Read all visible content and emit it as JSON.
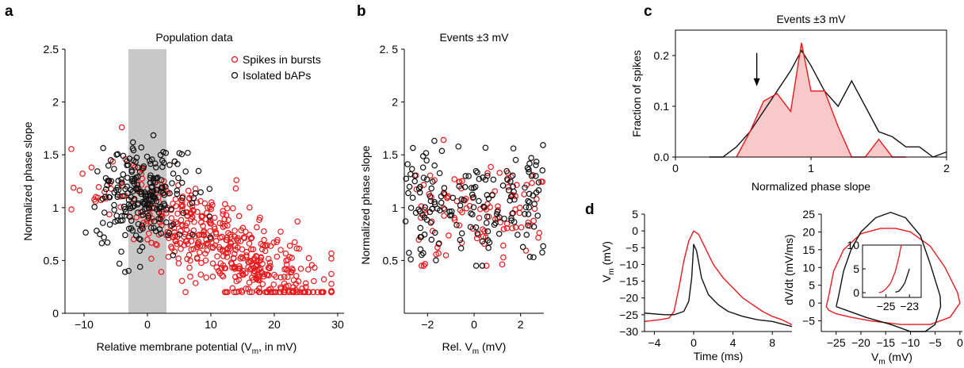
{
  "colors": {
    "bursts": "#e8191c",
    "isolated": "#111111",
    "shade": "#c8c8c8",
    "fill": "#f9c9c9"
  },
  "panel_labels": {
    "a": "a",
    "b": "b",
    "c": "c",
    "d": "d"
  },
  "chart_data": [
    {
      "id": "a",
      "type": "scatter",
      "title": "Population data",
      "xlabel_main": "Relative membrane potential (V",
      "xlabel_sub": "m",
      "xlabel_tail": ", in mV)",
      "ylabel": "Normalized phase slope",
      "xlim": [
        -13,
        31
      ],
      "ylim": [
        0,
        2.5
      ],
      "xticks": [
        -10,
        0,
        10,
        20,
        30
      ],
      "xticklabels": [
        "−10",
        "0",
        "10",
        "20",
        "30"
      ],
      "yticks": [
        0,
        0.5,
        1,
        1.5,
        2,
        2.5
      ],
      "yticklabels": [
        "0",
        "0.5",
        "1",
        "1.5",
        "2",
        "2.5"
      ],
      "shaded_x": [
        -3,
        3
      ],
      "legend": [
        "Spikes in bursts",
        "Isolated bAPs"
      ],
      "series": [
        {
          "name": "Spikes in bursts",
          "color": "#e8191c",
          "n": 520,
          "slope": -0.03,
          "intercept": 1.0,
          "noise": 0.22,
          "xcenter": 12,
          "xspread": 9,
          "seed": 11
        },
        {
          "name": "Isolated bAPs",
          "color": "#111111",
          "n": 240,
          "slope": 0.0,
          "intercept": 1.1,
          "noise": 0.25,
          "xcenter": -1,
          "xspread": 3.5,
          "seed": 7
        }
      ]
    },
    {
      "id": "b",
      "type": "scatter",
      "title": "Events ±3 mV",
      "xlabel_main": "Rel. V",
      "xlabel_sub": "m",
      "xlabel_tail": " (mV)",
      "ylabel": "Normalized phase slope",
      "xlim": [
        -3,
        3
      ],
      "ylim": [
        0,
        2.5
      ],
      "xticks": [
        -2,
        0,
        2
      ],
      "xticklabels": [
        "−2",
        "0",
        "2"
      ],
      "yticks": [
        0.5,
        1,
        1.5,
        2,
        2.5
      ],
      "yticklabels": [
        "0.5",
        "1",
        "1.5",
        "2",
        "2. 5"
      ],
      "series": [
        {
          "name": "Spikes in bursts",
          "color": "#e8191c",
          "n": 110,
          "mean": 0.95,
          "noise": 0.24,
          "xmin": -2.5,
          "xmax": 3,
          "seed": 21
        },
        {
          "name": "Isolated bAPs",
          "color": "#111111",
          "n": 170,
          "mean": 1.05,
          "noise": 0.28,
          "xmin": -3,
          "xmax": 3,
          "seed": 33
        }
      ]
    },
    {
      "id": "c",
      "type": "area",
      "title": "Events ±3 mV",
      "xlabel": "Normalized phase slope",
      "ylabel": "Fraction of spikes",
      "xlim": [
        0,
        2
      ],
      "ylim": [
        0,
        0.25
      ],
      "xticks": [
        0,
        1,
        2
      ],
      "xticklabels": [
        "0",
        "1",
        "2"
      ],
      "yticks": [
        0,
        0.1,
        0.2
      ],
      "yticklabels": [
        "0.0",
        "0.1",
        "0.2"
      ],
      "series": [
        {
          "name": "Spikes in bursts",
          "color": "#e8191c",
          "x": [
            0.45,
            0.55,
            0.65,
            0.75,
            0.85,
            0.93,
            1.0,
            1.1,
            1.2,
            1.3,
            1.4,
            1.5,
            1.6,
            1.7
          ],
          "y": [
            0.0,
            0.05,
            0.11,
            0.125,
            0.09,
            0.225,
            0.13,
            0.13,
            0.06,
            0.0,
            0.0,
            0.035,
            0.0,
            0.0
          ]
        },
        {
          "name": "Isolated bAPs",
          "color": "#111111",
          "x": [
            0.25,
            0.35,
            0.45,
            0.55,
            0.65,
            0.75,
            0.85,
            0.93,
            1.0,
            1.1,
            1.2,
            1.3,
            1.4,
            1.5,
            1.6,
            1.7,
            1.8,
            1.9,
            2.0
          ],
          "y": [
            0.0,
            0.0,
            0.02,
            0.05,
            0.09,
            0.13,
            0.17,
            0.21,
            0.18,
            0.13,
            0.1,
            0.15,
            0.1,
            0.05,
            0.04,
            0.02,
            0.02,
            0.0,
            0.01
          ]
        }
      ],
      "arrow_at": [
        0.6,
        0.13
      ]
    },
    {
      "id": "d1",
      "type": "line",
      "xlabel": "Time (ms)",
      "ylabel_main": "V",
      "ylabel_sub": "m",
      "ylabel_tail": " (mV)",
      "xlim": [
        -5,
        10
      ],
      "ylim": [
        -30,
        5
      ],
      "xticks": [
        -4,
        0,
        4,
        8
      ],
      "xticklabels": [
        "−4",
        "0",
        "4",
        "8"
      ],
      "yticks": [
        -30,
        -25,
        -20,
        -15,
        -10,
        -5,
        0,
        5
      ],
      "yticklabels": [
        "−30",
        "−25",
        "−20",
        "−15",
        "−10",
        "−5",
        "0",
        "5"
      ],
      "series": [
        {
          "name": "Spikes in bursts",
          "color": "#e8191c",
          "x": [
            -5,
            -3.5,
            -2.5,
            -2,
            -1.5,
            -1,
            -0.5,
            0,
            0.5,
            1,
            2,
            3,
            4,
            5,
            6,
            7,
            8,
            9,
            10
          ],
          "y": [
            -27,
            -26.5,
            -26,
            -24,
            -17,
            -9,
            -3,
            0,
            -1,
            -4,
            -10,
            -14,
            -17,
            -20,
            -22,
            -24,
            -25.5,
            -26.5,
            -28
          ]
        },
        {
          "name": "Isolated bAPs",
          "color": "#111111",
          "x": [
            -5,
            -3,
            -2,
            -1.5,
            -1,
            -0.5,
            -0.2,
            0,
            0.3,
            0.8,
            1.5,
            2.5,
            3.5,
            5,
            6.5,
            8,
            10
          ],
          "y": [
            -24.5,
            -25,
            -25,
            -24.5,
            -24,
            -21,
            -14,
            -4,
            -6,
            -14,
            -19,
            -22,
            -24,
            -25.5,
            -26.5,
            -27,
            -28.5
          ]
        }
      ]
    },
    {
      "id": "d2",
      "type": "line",
      "xlabel_main": "V",
      "xlabel_sub": "m",
      "xlabel_tail": " (mV)",
      "ylabel": "dV/dt (mV/ms)",
      "xlim": [
        -28,
        0.5
      ],
      "ylim": [
        -8,
        25
      ],
      "xticks": [
        -25,
        -20,
        -15,
        -10,
        -5,
        0
      ],
      "xticklabels": [
        "−25",
        "−20",
        "−15",
        "−10",
        "−5",
        "0"
      ],
      "yticks": [
        -5,
        0,
        5,
        10,
        15,
        20,
        25
      ],
      "yticklabels": [
        "−5",
        "0",
        "5",
        "10",
        "15",
        "20",
        "25"
      ],
      "series": [
        {
          "name": "Spikes in bursts",
          "color": "#e8191c",
          "x": [
            -27,
            -26.5,
            -25.5,
            -23.5,
            -20,
            -16,
            -13,
            -10,
            -6,
            -3,
            -0.5,
            0,
            -2,
            -6,
            -12,
            -18,
            -22,
            -25,
            -26.5,
            -27
          ],
          "y": [
            -1,
            2,
            9,
            15,
            19.5,
            21,
            21,
            20,
            16,
            10,
            3,
            0,
            -4,
            -6,
            -6,
            -5,
            -4,
            -3,
            -2,
            -1
          ]
        },
        {
          "name": "Isolated bAPs",
          "color": "#111111",
          "x": [
            -25,
            -24.5,
            -23.5,
            -22,
            -20,
            -17,
            -14,
            -11,
            -8,
            -6,
            -4,
            -3.9,
            -5,
            -7,
            -10,
            -14,
            -19,
            -23,
            -25
          ],
          "y": [
            -1,
            2,
            9,
            15,
            20,
            24,
            25.5,
            24,
            19,
            11,
            2,
            -1,
            -6,
            -8,
            -8,
            -6,
            -4,
            -2,
            -1
          ]
        }
      ],
      "inset": {
        "xlim": [
          -27,
          -22
        ],
        "ylim": [
          -1,
          10
        ],
        "xticks": [
          -25,
          -23
        ],
        "xticklabels": [
          "−25",
          "−23"
        ],
        "yticks": [
          0,
          5,
          10
        ],
        "yticklabels": [
          "0",
          "5",
          "10"
        ],
        "series": [
          {
            "name": "Spikes in bursts",
            "color": "#e8191c",
            "x": [
              -25.6,
              -25.3,
              -25.0,
              -24.6,
              -24.2,
              -23.9,
              -23.7
            ],
            "y": [
              0,
              0.2,
              0.8,
              2.0,
              4.5,
              7.5,
              10
            ]
          },
          {
            "name": "Isolated bAPs",
            "color": "#111111",
            "x": [
              -24.2,
              -23.9,
              -23.7,
              -23.4,
              -23.2,
              -23.0
            ],
            "y": [
              0.1,
              0.3,
              0.9,
              2.0,
              3.5,
              5.0
            ]
          }
        ]
      }
    }
  ]
}
